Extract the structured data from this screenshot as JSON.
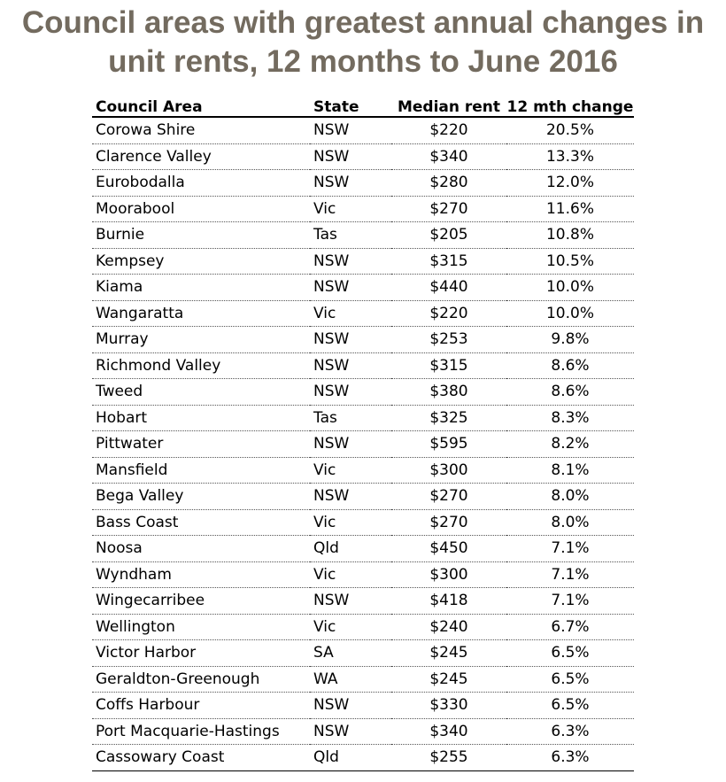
{
  "chart_data": {
    "type": "table",
    "title": "Council areas with greatest annual changes in unit rents, 12 months to June 2016",
    "title_lines": [
      "Council areas with greatest annual changes in",
      "unit rents, 12 months to June 2016"
    ],
    "columns": [
      "Council Area",
      "State",
      "Median rent",
      "12 mth change"
    ],
    "rows": [
      [
        "Corowa Shire",
        "NSW",
        "$220",
        "20.5%"
      ],
      [
        "Clarence Valley",
        "NSW",
        "$340",
        "13.3%"
      ],
      [
        "Eurobodalla",
        "NSW",
        "$280",
        "12.0%"
      ],
      [
        "Moorabool",
        "Vic",
        "$270",
        "11.6%"
      ],
      [
        "Burnie",
        "Tas",
        "$205",
        "10.8%"
      ],
      [
        "Kempsey",
        "NSW",
        "$315",
        "10.5%"
      ],
      [
        "Kiama",
        "NSW",
        "$440",
        "10.0%"
      ],
      [
        "Wangaratta",
        "Vic",
        "$220",
        "10.0%"
      ],
      [
        "Murray",
        "NSW",
        "$253",
        "9.8%"
      ],
      [
        "Richmond Valley",
        "NSW",
        "$315",
        "8.6%"
      ],
      [
        "Tweed",
        "NSW",
        "$380",
        "8.6%"
      ],
      [
        "Hobart",
        "Tas",
        "$325",
        "8.3%"
      ],
      [
        "Pittwater",
        "NSW",
        "$595",
        "8.2%"
      ],
      [
        "Mansfield",
        "Vic",
        "$300",
        "8.1%"
      ],
      [
        "Bega Valley",
        "NSW",
        "$270",
        "8.0%"
      ],
      [
        "Bass Coast",
        "Vic",
        "$270",
        "8.0%"
      ],
      [
        "Noosa",
        "Qld",
        "$450",
        "7.1%"
      ],
      [
        "Wyndham",
        "Vic",
        "$300",
        "7.1%"
      ],
      [
        "Wingecarribee",
        "NSW",
        "$418",
        "7.1%"
      ],
      [
        "Wellington",
        "Vic",
        "$240",
        "6.7%"
      ],
      [
        "Victor Harbor",
        "SA",
        "$245",
        "6.5%"
      ],
      [
        "Geraldton-Greenough",
        "WA",
        "$245",
        "6.5%"
      ],
      [
        "Coffs Harbour",
        "NSW",
        "$330",
        "6.5%"
      ],
      [
        "Port Macquarie-Hastings",
        "NSW",
        "$340",
        "6.3%"
      ],
      [
        "Cassowary Coast",
        "Qld",
        "$255",
        "6.3%"
      ]
    ]
  },
  "colors": {
    "title": "#736b5f",
    "text": "#000000",
    "row_divider": "#555555"
  }
}
